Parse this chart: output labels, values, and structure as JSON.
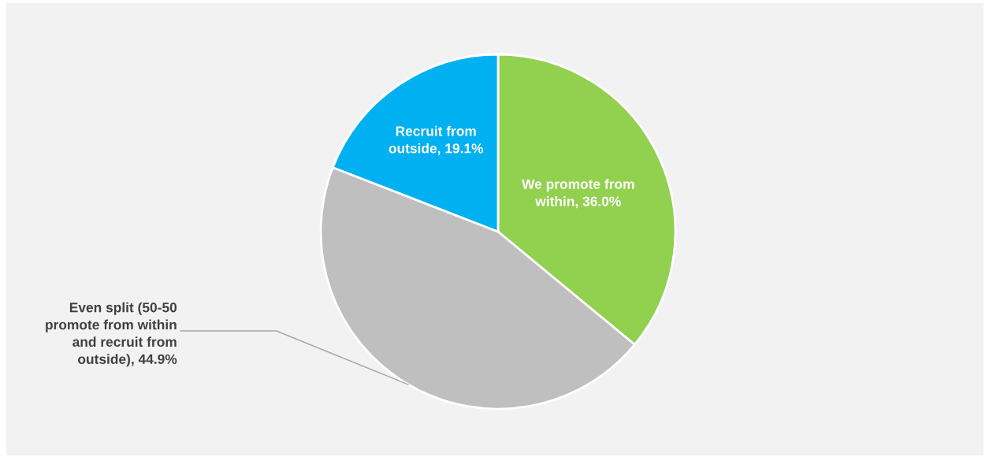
{
  "chart_data": {
    "type": "pie",
    "categories": [
      "We promote from\nwithin",
      "Even split (50-50\npromote from within\nand recruit from\noutside)",
      "Recruit from\noutside"
    ],
    "values": [
      36.0,
      44.9,
      19.1
    ],
    "colors": [
      "#92d050",
      "#bfbfbf",
      "#00b0f0"
    ],
    "value_labels": [
      "36.0%",
      "44.9%",
      "19.1%"
    ]
  }
}
